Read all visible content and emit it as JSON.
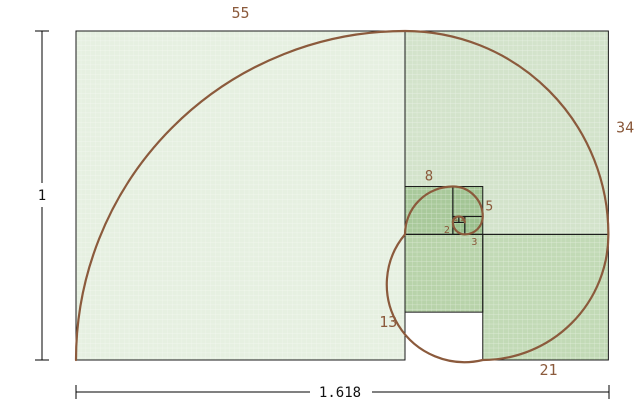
{
  "diagram": {
    "squares": [
      {
        "label": "55",
        "fill": "#e6f0e1"
      },
      {
        "label": "34",
        "fill": "#d3e3cb"
      },
      {
        "label": "21",
        "fill": "#c2dab6"
      },
      {
        "label": "13",
        "fill": "#b8d3aa"
      },
      {
        "label": "8",
        "fill": "#a9c99b"
      },
      {
        "label": "5",
        "fill": "#a3c595"
      },
      {
        "label": "3",
        "fill": "#9cc08e"
      },
      {
        "label": "2",
        "fill": "#98be8a"
      },
      {
        "label": "1",
        "fill": "#94bb86"
      },
      {
        "label": "1",
        "fill": "#94bb86"
      }
    ],
    "dimension_height": "1",
    "dimension_width": "1.618",
    "colors": {
      "grid": "#ffffff",
      "border": "#1a1a1a",
      "spiral": "#8b5a3c",
      "label": "#8b5a3c"
    }
  }
}
